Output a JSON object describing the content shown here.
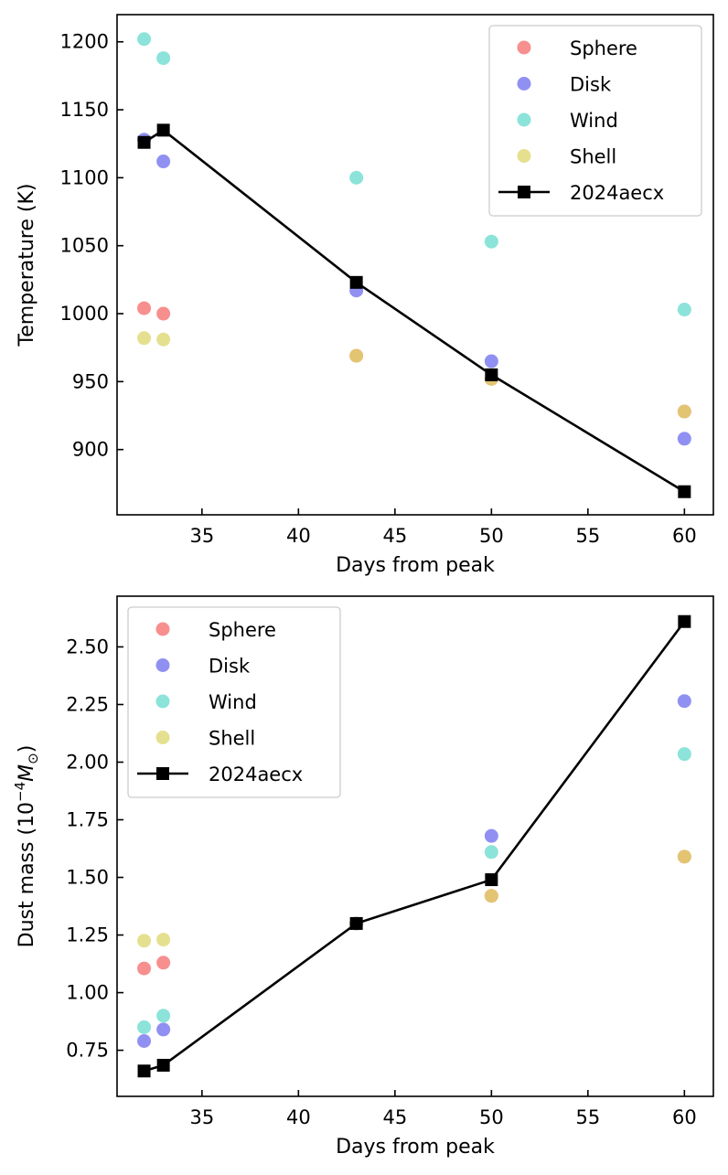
{
  "chart_data": [
    {
      "type": "scatter",
      "title": "",
      "xlabel": "Days from peak",
      "ylabel": "Temperature (K)",
      "xlim": [
        30.6,
        61.5
      ],
      "ylim": [
        852,
        1220
      ],
      "xticks": [
        35,
        40,
        45,
        50,
        55,
        60
      ],
      "yticks": [
        900,
        950,
        1000,
        1050,
        1100,
        1150,
        1200
      ],
      "xtick_labels": [
        "35",
        "40",
        "45",
        "50",
        "55",
        "60"
      ],
      "ytick_labels": [
        "900",
        "950",
        "1000",
        "1050",
        "1100",
        "1150",
        "1200"
      ],
      "grid": false,
      "legend_position": "top-right",
      "series": [
        {
          "name": "Sphere",
          "kind": "scatter",
          "color": "#f46a6a",
          "x": [
            32,
            33,
            43,
            50,
            60
          ],
          "y": [
            1004,
            1000,
            969,
            952,
            928
          ]
        },
        {
          "name": "Disk",
          "kind": "scatter",
          "color": "#6b6bee",
          "x": [
            32,
            33,
            43,
            50,
            60
          ],
          "y": [
            1128,
            1112,
            1017,
            965,
            908
          ]
        },
        {
          "name": "Wind",
          "kind": "scatter",
          "color": "#66d9cc",
          "x": [
            32,
            33,
            43,
            50,
            60
          ],
          "y": [
            1202,
            1188,
            1100,
            1053,
            1003
          ]
        },
        {
          "name": "Shell",
          "kind": "scatter",
          "color": "#dcd66a",
          "x": [
            32,
            33,
            43,
            50,
            60
          ],
          "y": [
            982,
            981,
            969,
            952,
            928
          ]
        },
        {
          "name": "2024aecx",
          "kind": "line",
          "color": "#000000",
          "x": [
            32,
            33,
            43,
            50,
            60
          ],
          "y": [
            1126,
            1135,
            1023,
            955,
            869
          ]
        }
      ]
    },
    {
      "type": "scatter",
      "title": "",
      "xlabel": "Days from peak",
      "ylabel": "Dust mass (10",
      "ylabel_sup": "−4",
      "ylabel_unit": "M",
      "ylabel_sub": "⊙",
      "ylabel_end": ")",
      "xlim": [
        30.6,
        61.5
      ],
      "ylim": [
        0.55,
        2.72
      ],
      "xticks": [
        35,
        40,
        45,
        50,
        55,
        60
      ],
      "yticks": [
        0.75,
        1.0,
        1.25,
        1.5,
        1.75,
        2.0,
        2.25,
        2.5
      ],
      "xtick_labels": [
        "35",
        "40",
        "45",
        "50",
        "55",
        "60"
      ],
      "ytick_labels": [
        "0.75",
        "1.00",
        "1.25",
        "1.50",
        "1.75",
        "2.00",
        "2.25",
        "2.50"
      ],
      "grid": false,
      "legend_position": "top-left",
      "series": [
        {
          "name": "Sphere",
          "kind": "scatter",
          "color": "#f46a6a",
          "x": [
            32,
            33,
            43,
            50,
            60
          ],
          "y": [
            1.105,
            1.13,
            1.3,
            1.42,
            1.59
          ]
        },
        {
          "name": "Disk",
          "kind": "scatter",
          "color": "#6b6bee",
          "x": [
            32,
            33,
            43,
            50,
            60
          ],
          "y": [
            0.79,
            0.84,
            1.3,
            1.68,
            2.265
          ]
        },
        {
          "name": "Wind",
          "kind": "scatter",
          "color": "#66d9cc",
          "x": [
            32,
            33,
            43,
            50,
            60
          ],
          "y": [
            0.85,
            0.9,
            1.3,
            1.61,
            2.035
          ]
        },
        {
          "name": "Shell",
          "kind": "scatter",
          "color": "#dcd66a",
          "x": [
            32,
            33,
            43,
            50,
            60
          ],
          "y": [
            1.225,
            1.23,
            1.3,
            1.42,
            1.59
          ]
        },
        {
          "name": "2024aecx",
          "kind": "line",
          "color": "#000000",
          "x": [
            32,
            33,
            43,
            50,
            60
          ],
          "y": [
            0.66,
            0.685,
            1.3,
            1.49,
            2.61
          ]
        }
      ]
    }
  ]
}
